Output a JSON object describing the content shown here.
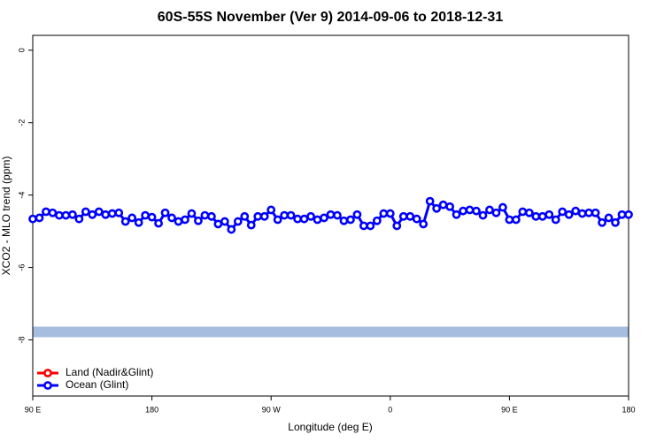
{
  "chart_data": {
    "type": "line",
    "title": "60S-55S November (Ver 9)   2014-09-06 to 2018-12-31",
    "xlabel": "Longitude (deg E)",
    "ylabel": "XCO2 - MLO trend (ppm)",
    "xlim": [
      90,
      540
    ],
    "ylim": [
      -9.55,
      0.41
    ],
    "xticks": [
      {
        "value": 90,
        "label": "90 E"
      },
      180,
      {
        "value": 270,
        "label": "90 W"
      },
      {
        "value": 360,
        "label": "0"
      },
      {
        "value": 450,
        "label": "90 E"
      },
      {
        "value": 540,
        "label": "180"
      }
    ],
    "yticks": [
      0,
      -2,
      -4,
      -6,
      -8
    ],
    "legend": "bottom-left",
    "band": {
      "value": -7.78,
      "color": "#a7bde0"
    },
    "x": [
      90,
      95,
      100,
      105,
      110,
      115,
      120,
      125,
      130,
      135,
      140,
      145,
      150,
      155,
      160,
      165,
      170,
      175,
      180,
      185,
      190,
      195,
      200,
      205,
      210,
      215,
      220,
      225,
      230,
      235,
      240,
      245,
      250,
      255,
      260,
      265,
      270,
      275,
      280,
      285,
      290,
      295,
      300,
      305,
      310,
      315,
      320,
      325,
      330,
      335,
      340,
      345,
      350,
      355,
      360,
      365,
      370,
      375,
      380,
      385,
      390,
      395,
      400,
      405,
      410,
      415,
      420,
      425,
      430,
      435,
      440,
      445,
      450,
      455,
      460,
      465,
      470,
      475,
      480,
      485,
      490,
      495,
      500,
      505,
      510,
      515,
      520,
      525,
      530,
      535,
      540
    ],
    "series": [
      {
        "name": "Land (Nadir&Glint)",
        "color": "#ff0000",
        "values": [
          null,
          null,
          null,
          null,
          null,
          null,
          null,
          null,
          null,
          null,
          null,
          null,
          null,
          null,
          null,
          null,
          null,
          null,
          null,
          null,
          null,
          null,
          null,
          null,
          null,
          null,
          null,
          null,
          null,
          null,
          null,
          null,
          null,
          null,
          null,
          null,
          null,
          null,
          null,
          null,
          null,
          null,
          null,
          null,
          null,
          null,
          null,
          null,
          null,
          null,
          null,
          null,
          null,
          null,
          null,
          null,
          null,
          null,
          null,
          null,
          null,
          null,
          null,
          null,
          null,
          null,
          null,
          null,
          null,
          null,
          null,
          null,
          null,
          null,
          null,
          null,
          null,
          null,
          null,
          null,
          null,
          null,
          null,
          null,
          null,
          null,
          null,
          null,
          null,
          null,
          null
        ]
      },
      {
        "name": "Ocean (Glint)",
        "color": "#0000ff",
        "values": [
          -4.66,
          -4.63,
          -4.46,
          -4.49,
          -4.56,
          -4.56,
          -4.54,
          -4.66,
          -4.46,
          -4.54,
          -4.46,
          -4.54,
          -4.51,
          -4.49,
          -4.73,
          -4.63,
          -4.76,
          -4.56,
          -4.61,
          -4.78,
          -4.49,
          -4.63,
          -4.73,
          -4.68,
          -4.51,
          -4.71,
          -4.56,
          -4.59,
          -4.8,
          -4.73,
          -4.95,
          -4.73,
          -4.59,
          -4.83,
          -4.59,
          -4.59,
          -4.41,
          -4.68,
          -4.56,
          -4.56,
          -4.66,
          -4.66,
          -4.59,
          -4.68,
          -4.63,
          -4.54,
          -4.56,
          -4.71,
          -4.68,
          -4.54,
          -4.85,
          -4.85,
          -4.71,
          -4.51,
          -4.51,
          -4.85,
          -4.59,
          -4.59,
          -4.66,
          -4.8,
          -4.17,
          -4.37,
          -4.27,
          -4.32,
          -4.54,
          -4.44,
          -4.41,
          -4.44,
          -4.56,
          -4.41,
          -4.49,
          -4.34,
          -4.68,
          -4.68,
          -4.46,
          -4.49,
          -4.59,
          -4.59,
          -4.54,
          -4.68,
          -4.46,
          -4.54,
          -4.44,
          -4.51,
          -4.49,
          -4.49,
          -4.76,
          -4.63,
          -4.76,
          -4.54,
          -4.54
        ]
      }
    ]
  }
}
